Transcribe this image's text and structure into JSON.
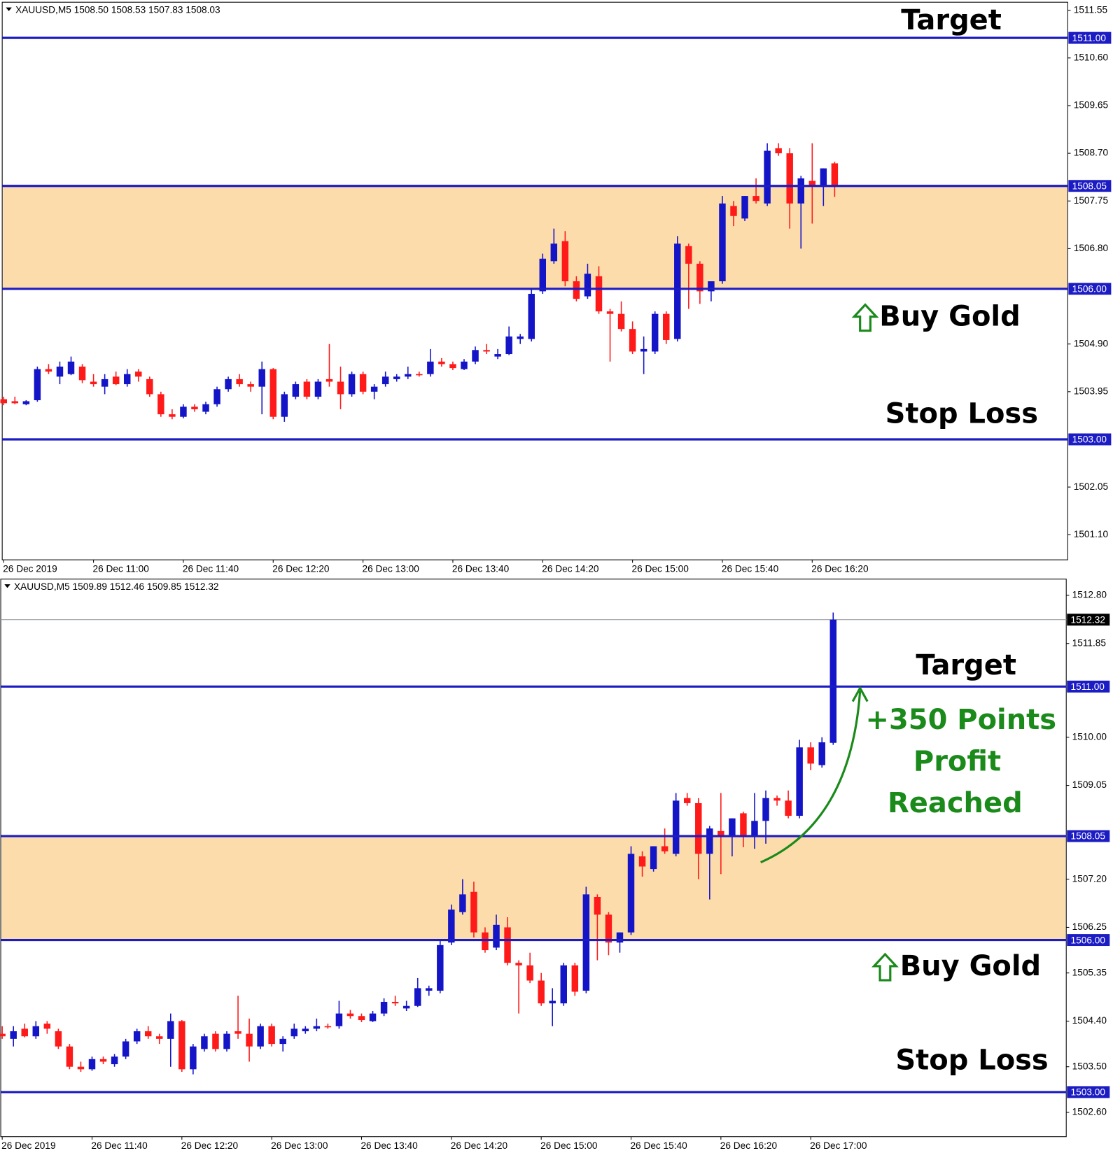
{
  "chart_data": [
    {
      "type": "candlestick",
      "title": "XAUUSD,M5  1508.50 1508.53 1507.83 1508.03",
      "up_color": "#1515c8",
      "down_color": "#ff1a1a",
      "level_color": "#1c1cc4",
      "zone_color": "#fddcac",
      "ylim": [
        1500.6,
        1511.71
      ],
      "yticks": [
        1511.55,
        {
          "value": 1510.6,
          "label": "1510.60"
        },
        1509.65,
        {
          "value": 1508.7,
          "label": "1508.70"
        },
        1507.75,
        {
          "value": 1506.8,
          "label": "1506.80"
        },
        {
          "value": 1504.9,
          "label": "1504.90"
        },
        1503.95,
        1502.05,
        {
          "value": 1501.1,
          "label": "1501.10"
        }
      ],
      "levels": [
        {
          "value": 1511,
          "label": "1511.00"
        },
        {
          "value": 1508.05,
          "label": "1508.05"
        },
        {
          "value": 1506,
          "label": "1506.00"
        },
        {
          "value": 1503,
          "label": "1503.00"
        }
      ],
      "annotations": [
        {
          "text": "Target",
          "color": "#000000"
        },
        {
          "text": "Buy Gold",
          "color": "#000000"
        },
        {
          "text": "Stop Loss",
          "color": "#000000"
        }
      ],
      "categories": [
        "26 Dec 2019",
        null,
        null,
        null,
        null,
        null,
        null,
        null,
        "26 Dec 11:00",
        null,
        null,
        null,
        null,
        null,
        null,
        null,
        "26 Dec 11:40",
        null,
        null,
        null,
        null,
        null,
        null,
        null,
        "26 Dec 12:20",
        null,
        null,
        null,
        null,
        null,
        null,
        null,
        "26 Dec 13:00",
        null,
        null,
        null,
        null,
        null,
        null,
        null,
        "26 Dec 13:40",
        null,
        null,
        null,
        null,
        null,
        null,
        null,
        "26 Dec 14:20",
        null,
        null,
        null,
        null,
        null,
        null,
        null,
        "26 Dec 15:00",
        null,
        null,
        null,
        null,
        null,
        null,
        null,
        "26 Dec 15:40",
        null,
        null,
        null,
        null,
        null,
        null,
        null,
        "26 Dec 16:20",
        null,
        null
      ],
      "candles": [
        [
          1503.8,
          1503.85,
          1503.68,
          1503.72
        ],
        [
          1503.76,
          1503.85,
          1503.7,
          1503.72
        ],
        [
          1503.7,
          1503.78,
          1503.68,
          1503.76
        ],
        [
          1503.78,
          1504.45,
          1503.75,
          1504.4
        ],
        [
          1504.4,
          1504.5,
          1504.3,
          1504.35
        ],
        [
          1504.25,
          1504.55,
          1504.1,
          1504.45
        ],
        [
          1504.3,
          1504.65,
          1504.28,
          1504.55
        ],
        [
          1504.45,
          1504.5,
          1504.12,
          1504.18
        ],
        [
          1504.15,
          1504.3,
          1504.05,
          1504.1
        ],
        [
          1504.05,
          1504.3,
          1503.9,
          1504.2
        ],
        [
          1504.25,
          1504.35,
          1504.08,
          1504.1
        ],
        [
          1504.1,
          1504.4,
          1504.05,
          1504.3
        ],
        [
          1504.35,
          1504.4,
          1504.15,
          1504.25
        ],
        [
          1504.2,
          1504.25,
          1503.85,
          1503.9
        ],
        [
          1503.9,
          1503.95,
          1503.45,
          1503.5
        ],
        [
          1503.5,
          1503.6,
          1503.4,
          1503.45
        ],
        [
          1503.45,
          1503.7,
          1503.42,
          1503.65
        ],
        [
          1503.65,
          1503.7,
          1503.55,
          1503.6
        ],
        [
          1503.55,
          1503.75,
          1503.5,
          1503.7
        ],
        [
          1503.7,
          1504.05,
          1503.65,
          1504.0
        ],
        [
          1504.0,
          1504.25,
          1503.95,
          1504.2
        ],
        [
          1504.2,
          1504.3,
          1504.05,
          1504.1
        ],
        [
          1504.1,
          1504.15,
          1503.95,
          1504.05
        ],
        [
          1504.05,
          1504.55,
          1503.5,
          1504.4
        ],
        [
          1504.4,
          1504.42,
          1503.4,
          1503.45
        ],
        [
          1503.45,
          1503.95,
          1503.35,
          1503.9
        ],
        [
          1503.85,
          1504.15,
          1503.8,
          1504.1
        ],
        [
          1504.15,
          1504.2,
          1503.8,
          1503.85
        ],
        [
          1503.85,
          1504.2,
          1503.8,
          1504.15
        ],
        [
          1504.2,
          1504.9,
          1504.05,
          1504.15
        ],
        [
          1504.15,
          1504.45,
          1503.6,
          1503.9
        ],
        [
          1503.9,
          1504.35,
          1503.85,
          1504.3
        ],
        [
          1504.3,
          1504.35,
          1503.9,
          1503.95
        ],
        [
          1503.95,
          1504.1,
          1503.8,
          1504.05
        ],
        [
          1504.1,
          1504.35,
          1504.05,
          1504.25
        ],
        [
          1504.2,
          1504.3,
          1504.15,
          1504.25
        ],
        [
          1504.25,
          1504.45,
          1504.2,
          1504.3
        ],
        [
          1504.3,
          1504.35,
          1504.25,
          1504.28
        ],
        [
          1504.3,
          1504.8,
          1504.25,
          1504.55
        ],
        [
          1504.55,
          1504.62,
          1504.45,
          1504.5
        ],
        [
          1504.5,
          1504.55,
          1504.38,
          1504.42
        ],
        [
          1504.4,
          1504.6,
          1504.38,
          1504.55
        ],
        [
          1504.55,
          1504.85,
          1504.5,
          1504.78
        ],
        [
          1504.78,
          1504.9,
          1504.7,
          1504.75
        ],
        [
          1504.65,
          1504.8,
          1504.6,
          1504.7
        ],
        [
          1504.7,
          1505.25,
          1504.68,
          1505.05
        ],
        [
          1505.0,
          1505.1,
          1504.9,
          1505.05
        ],
        [
          1505.0,
          1506.0,
          1504.95,
          1505.9
        ],
        [
          1505.95,
          1506.7,
          1505.9,
          1506.6
        ],
        [
          1506.55,
          1507.2,
          1506.5,
          1506.9
        ],
        [
          1506.95,
          1507.15,
          1506.05,
          1506.15
        ],
        [
          1506.15,
          1506.25,
          1505.75,
          1505.8
        ],
        [
          1505.85,
          1506.5,
          1505.8,
          1506.3
        ],
        [
          1506.25,
          1506.45,
          1505.5,
          1505.55
        ],
        [
          1505.55,
          1505.6,
          1504.55,
          1505.5
        ],
        [
          1505.5,
          1505.75,
          1505.15,
          1505.2
        ],
        [
          1505.2,
          1505.35,
          1504.7,
          1504.75
        ],
        [
          1504.75,
          1505.05,
          1504.3,
          1504.8
        ],
        [
          1504.75,
          1505.55,
          1504.7,
          1505.5
        ],
        [
          1505.5,
          1505.55,
          1504.9,
          1504.98
        ],
        [
          1505.0,
          1507.05,
          1504.95,
          1506.9
        ],
        [
          1506.85,
          1506.9,
          1505.6,
          1506.5
        ],
        [
          1506.5,
          1506.55,
          1505.7,
          1505.95
        ],
        [
          1505.95,
          1506.15,
          1505.75,
          1506.15
        ],
        [
          1506.15,
          1507.85,
          1506.1,
          1507.7
        ],
        [
          1507.65,
          1507.75,
          1507.25,
          1507.45
        ],
        [
          1507.4,
          1507.85,
          1507.35,
          1507.85
        ],
        [
          1507.85,
          1508.2,
          1507.7,
          1507.75
        ],
        [
          1507.7,
          1508.9,
          1507.65,
          1508.75
        ],
        [
          1508.8,
          1508.9,
          1508.65,
          1508.7
        ],
        [
          1508.7,
          1508.8,
          1507.2,
          1507.7
        ],
        [
          1507.7,
          1508.25,
          1506.8,
          1508.2
        ],
        [
          1508.15,
          1508.9,
          1507.3,
          1508.05
        ],
        [
          1508.05,
          1508.4,
          1507.65,
          1508.4
        ],
        [
          1508.5,
          1508.53,
          1507.83,
          1508.03
        ]
      ]
    },
    {
      "type": "candlestick",
      "title": "XAUUSD,M5  1509.89 1512.46 1509.85 1512.32",
      "up_color": "#1515c8",
      "down_color": "#ff1a1a",
      "level_color": "#1c1cc4",
      "zone_color": "#fddcac",
      "ylim": [
        1502.12,
        1513.12
      ],
      "yticks": [
        {
          "value": 1512.8,
          "label": "1512.80"
        },
        1511.85,
        {
          "value": 1510,
          "label": "1510.00"
        },
        1509.05,
        {
          "value": 1507.2,
          "label": "1507.20"
        },
        1506.25,
        1505.35,
        {
          "value": 1504.4,
          "label": "1504.40"
        },
        {
          "value": 1503.5,
          "label": "1503.50"
        },
        {
          "value": 1502.6,
          "label": "1502.60"
        }
      ],
      "levels": [
        {
          "value": 1511,
          "label": "1511.00"
        },
        {
          "value": 1508.05,
          "label": "1508.05"
        },
        {
          "value": 1506,
          "label": "1506.00"
        },
        {
          "value": 1503,
          "label": "1503.00"
        }
      ],
      "last_price": 1512.32,
      "annotations": [
        {
          "text": "Target",
          "color": "#000000"
        },
        {
          "text": "+350 Points",
          "color": "#1a8a1a"
        },
        {
          "text": "Profit",
          "color": "#1a8a1a"
        },
        {
          "text": "Reached",
          "color": "#1a8a1a"
        },
        {
          "text": "Buy Gold",
          "color": "#000000"
        },
        {
          "text": "Stop Loss",
          "color": "#000000"
        }
      ],
      "categories": [
        "26 Dec 2019",
        null,
        null,
        null,
        null,
        null,
        null,
        null,
        "26 Dec 11:40",
        null,
        null,
        null,
        null,
        null,
        null,
        null,
        "26 Dec 12:20",
        null,
        null,
        null,
        null,
        null,
        null,
        null,
        "26 Dec 13:00",
        null,
        null,
        null,
        null,
        null,
        null,
        null,
        "26 Dec 13:40",
        null,
        null,
        null,
        null,
        null,
        null,
        null,
        "26 Dec 14:20",
        null,
        null,
        null,
        null,
        null,
        null,
        null,
        "26 Dec 15:00",
        null,
        null,
        null,
        null,
        null,
        null,
        null,
        "26 Dec 15:40",
        null,
        null,
        null,
        null,
        null,
        null,
        null,
        "26 Dec 16:20",
        null,
        null,
        null,
        null,
        null,
        null,
        null,
        "26 Dec 17:00",
        null,
        null
      ],
      "candles": [
        [
          1504.15,
          1504.3,
          1504.05,
          1504.1
        ],
        [
          1504.05,
          1504.3,
          1503.9,
          1504.2
        ],
        [
          1504.25,
          1504.35,
          1504.08,
          1504.1
        ],
        [
          1504.1,
          1504.4,
          1504.05,
          1504.3
        ],
        [
          1504.35,
          1504.4,
          1504.15,
          1504.25
        ],
        [
          1504.2,
          1504.25,
          1503.85,
          1503.9
        ],
        [
          1503.9,
          1503.95,
          1503.45,
          1503.5
        ],
        [
          1503.5,
          1503.6,
          1503.4,
          1503.45
        ],
        [
          1503.45,
          1503.7,
          1503.42,
          1503.65
        ],
        [
          1503.65,
          1503.7,
          1503.55,
          1503.6
        ],
        [
          1503.55,
          1503.75,
          1503.5,
          1503.7
        ],
        [
          1503.7,
          1504.05,
          1503.65,
          1504.0
        ],
        [
          1504.0,
          1504.25,
          1503.95,
          1504.2
        ],
        [
          1504.2,
          1504.3,
          1504.05,
          1504.1
        ],
        [
          1504.1,
          1504.15,
          1503.95,
          1504.05
        ],
        [
          1504.05,
          1504.55,
          1503.5,
          1504.4
        ],
        [
          1504.4,
          1504.42,
          1503.4,
          1503.45
        ],
        [
          1503.45,
          1503.95,
          1503.35,
          1503.9
        ],
        [
          1503.85,
          1504.15,
          1503.8,
          1504.1
        ],
        [
          1504.15,
          1504.2,
          1503.8,
          1503.85
        ],
        [
          1503.85,
          1504.2,
          1503.8,
          1504.15
        ],
        [
          1504.2,
          1504.9,
          1504.05,
          1504.15
        ],
        [
          1504.15,
          1504.45,
          1503.6,
          1503.9
        ],
        [
          1503.9,
          1504.35,
          1503.85,
          1504.3
        ],
        [
          1504.3,
          1504.35,
          1503.9,
          1503.95
        ],
        [
          1503.95,
          1504.1,
          1503.8,
          1504.05
        ],
        [
          1504.1,
          1504.35,
          1504.05,
          1504.25
        ],
        [
          1504.2,
          1504.3,
          1504.15,
          1504.25
        ],
        [
          1504.25,
          1504.45,
          1504.2,
          1504.3
        ],
        [
          1504.3,
          1504.35,
          1504.25,
          1504.28
        ],
        [
          1504.3,
          1504.8,
          1504.25,
          1504.55
        ],
        [
          1504.55,
          1504.62,
          1504.45,
          1504.5
        ],
        [
          1504.5,
          1504.55,
          1504.38,
          1504.42
        ],
        [
          1504.4,
          1504.6,
          1504.38,
          1504.55
        ],
        [
          1504.55,
          1504.85,
          1504.5,
          1504.78
        ],
        [
          1504.78,
          1504.9,
          1504.7,
          1504.75
        ],
        [
          1504.65,
          1504.8,
          1504.6,
          1504.7
        ],
        [
          1504.7,
          1505.25,
          1504.68,
          1505.05
        ],
        [
          1505.0,
          1505.1,
          1504.9,
          1505.05
        ],
        [
          1505.0,
          1506.0,
          1504.95,
          1505.9
        ],
        [
          1505.95,
          1506.7,
          1505.9,
          1506.6
        ],
        [
          1506.55,
          1507.2,
          1506.5,
          1506.9
        ],
        [
          1506.95,
          1507.15,
          1506.05,
          1506.15
        ],
        [
          1506.15,
          1506.25,
          1505.75,
          1505.8
        ],
        [
          1505.85,
          1506.5,
          1505.8,
          1506.3
        ],
        [
          1506.25,
          1506.45,
          1505.5,
          1505.55
        ],
        [
          1505.55,
          1505.6,
          1504.55,
          1505.5
        ],
        [
          1505.5,
          1505.75,
          1505.15,
          1505.2
        ],
        [
          1505.2,
          1505.35,
          1504.7,
          1504.75
        ],
        [
          1504.75,
          1505.05,
          1504.3,
          1504.8
        ],
        [
          1504.75,
          1505.55,
          1504.7,
          1505.5
        ],
        [
          1505.5,
          1505.55,
          1504.9,
          1504.98
        ],
        [
          1505.0,
          1507.05,
          1504.95,
          1506.9
        ],
        [
          1506.85,
          1506.9,
          1505.6,
          1506.5
        ],
        [
          1506.5,
          1506.55,
          1505.7,
          1505.95
        ],
        [
          1505.95,
          1506.15,
          1505.75,
          1506.15
        ],
        [
          1506.15,
          1507.85,
          1506.1,
          1507.7
        ],
        [
          1507.65,
          1507.75,
          1507.25,
          1507.45
        ],
        [
          1507.4,
          1507.85,
          1507.35,
          1507.85
        ],
        [
          1507.85,
          1508.2,
          1507.7,
          1507.75
        ],
        [
          1507.7,
          1508.9,
          1507.65,
          1508.75
        ],
        [
          1508.8,
          1508.9,
          1508.65,
          1508.7
        ],
        [
          1508.7,
          1508.8,
          1507.2,
          1507.7
        ],
        [
          1507.7,
          1508.25,
          1506.8,
          1508.2
        ],
        [
          1508.15,
          1508.9,
          1507.3,
          1508.05
        ],
        [
          1508.05,
          1508.4,
          1507.65,
          1508.4
        ],
        [
          1508.5,
          1508.53,
          1507.83,
          1508.03
        ],
        [
          1508.05,
          1508.9,
          1507.8,
          1508.35
        ],
        [
          1508.35,
          1508.95,
          1507.9,
          1508.8
        ],
        [
          1508.8,
          1508.85,
          1508.65,
          1508.75
        ],
        [
          1508.75,
          1508.95,
          1508.4,
          1508.45
        ],
        [
          1508.45,
          1509.95,
          1508.4,
          1509.8
        ],
        [
          1509.8,
          1509.9,
          1509.35,
          1509.48
        ],
        [
          1509.45,
          1510.0,
          1509.4,
          1509.9
        ],
        [
          1509.89,
          1512.46,
          1509.85,
          1512.32
        ]
      ]
    }
  ]
}
